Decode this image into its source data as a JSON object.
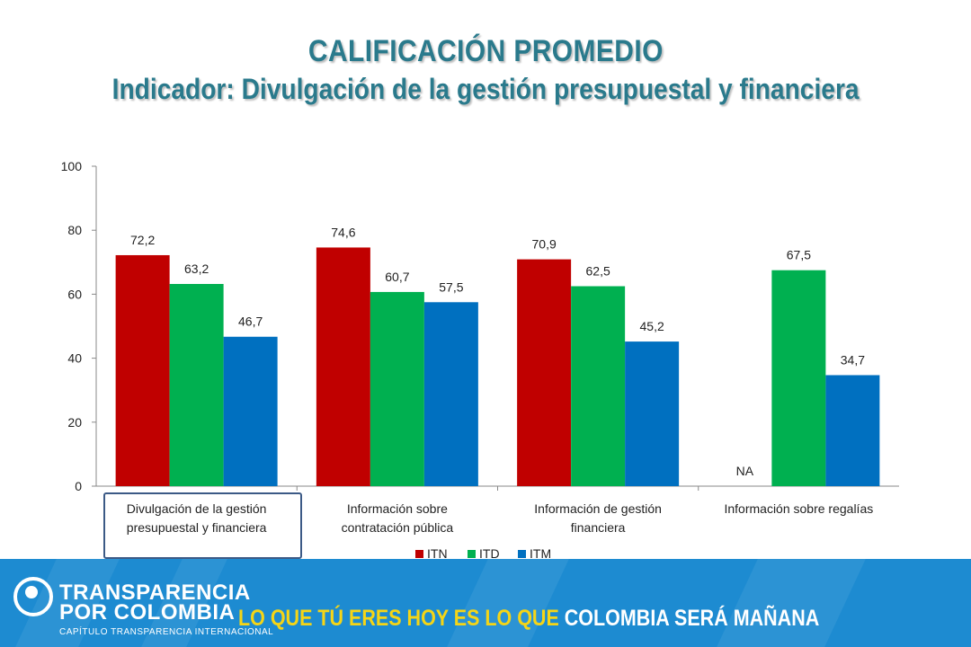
{
  "header": {
    "title": "CALIFICACIÓN PROMEDIO",
    "subtitle": "Indicador: Divulgación de la gestión presupuestal y financiera"
  },
  "chart_data": {
    "type": "bar",
    "title": "",
    "xlabel": "",
    "ylabel": "",
    "ylim": [
      0,
      100
    ],
    "yticks": [
      0,
      20,
      40,
      60,
      80,
      100
    ],
    "grid": false,
    "legend_position": "bottom",
    "categories": [
      [
        "Divulgación de la gestión",
        "presupuestal y financiera"
      ],
      [
        "Información sobre",
        "contratación pública"
      ],
      [
        "Información de gestión",
        "financiera"
      ],
      [
        "Información  sobre regalías"
      ]
    ],
    "series": [
      {
        "name": "ITN",
        "color": "#c00000",
        "values": [
          72.2,
          74.6,
          70.9,
          null
        ],
        "labels": [
          "72,2",
          "74,6",
          "70,9",
          "NA"
        ]
      },
      {
        "name": "ITD",
        "color": "#00b050",
        "values": [
          63.2,
          60.7,
          62.5,
          67.5
        ],
        "labels": [
          "63,2",
          "60,7",
          "62,5",
          "67,5"
        ]
      },
      {
        "name": "ITM",
        "color": "#0070c0",
        "values": [
          46.7,
          57.5,
          45.2,
          34.7
        ],
        "labels": [
          "46,7",
          "57,5",
          "45,2",
          "34,7"
        ]
      }
    ]
  },
  "footer": {
    "logo_line1": "TRANSPARENCIA",
    "logo_line2": "POR COLOMBIA",
    "logo_sub": "CAPÍTULO TRANSPARENCIA INTERNACIONAL",
    "slogan_part1": "LO QUE TÚ ERES HOY ES LO QUE",
    "slogan_part2": " COLOMBIA SERÁ MAÑANA",
    "color": "#1d8bd1",
    "slogan_accent": "#f5d516"
  }
}
